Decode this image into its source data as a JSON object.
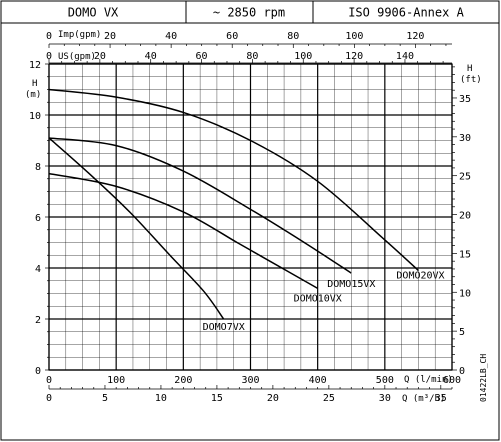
{
  "header": {
    "model": "DOMO VX",
    "speed": "~ 2850 rpm",
    "standard": "ISO 9906-Annex A"
  },
  "figure_code": "01422LB_CH",
  "chart_data": {
    "type": "line",
    "title": "",
    "grid": true,
    "x_main": {
      "label": "Q (l/min)",
      "range": [
        0,
        600
      ],
      "ticks": [
        0,
        100,
        200,
        300,
        400,
        500,
        600
      ]
    },
    "x_m3h": {
      "label": "Q (m³/h)",
      "range": [
        0,
        36
      ],
      "ticks": [
        0,
        5,
        10,
        15,
        20,
        25,
        30,
        35
      ]
    },
    "x_imp": {
      "label": "Imp(gpm)",
      "range": [
        0,
        131.98
      ],
      "ticks": [
        0,
        20,
        40,
        60,
        80,
        100,
        120
      ]
    },
    "x_us": {
      "label": "US(gpm)",
      "range": [
        0,
        158.5
      ],
      "ticks": [
        0,
        20,
        40,
        60,
        80,
        100,
        120,
        140
      ]
    },
    "y_left": {
      "label": "H (m)",
      "range": [
        0,
        12
      ],
      "ticks": [
        0,
        2,
        4,
        6,
        8,
        10,
        12
      ]
    },
    "y_right": {
      "label": "H (ft)",
      "range": [
        0,
        39.37
      ],
      "ticks": [
        0,
        5,
        10,
        15,
        20,
        25,
        30,
        35
      ]
    },
    "series": [
      {
        "name": "DOMO7VX",
        "x": [
          0,
          60,
          120,
          180,
          230,
          260
        ],
        "y": [
          9.1,
          7.7,
          6.2,
          4.5,
          3.1,
          2.0
        ]
      },
      {
        "name": "DOMO10VX",
        "x": [
          0,
          100,
          200,
          280,
          320,
          400
        ],
        "y": [
          7.7,
          7.2,
          6.2,
          5.0,
          4.4,
          3.2
        ]
      },
      {
        "name": "DOMO15VX",
        "x": [
          0,
          100,
          200,
          300,
          380,
          450
        ],
        "y": [
          9.1,
          8.8,
          7.8,
          6.3,
          5.0,
          3.8
        ]
      },
      {
        "name": "DOMO20VX",
        "x": [
          0,
          100,
          200,
          300,
          400,
          500,
          550
        ],
        "y": [
          11.0,
          10.7,
          10.1,
          9.0,
          7.4,
          5.1,
          3.9
        ]
      }
    ]
  }
}
